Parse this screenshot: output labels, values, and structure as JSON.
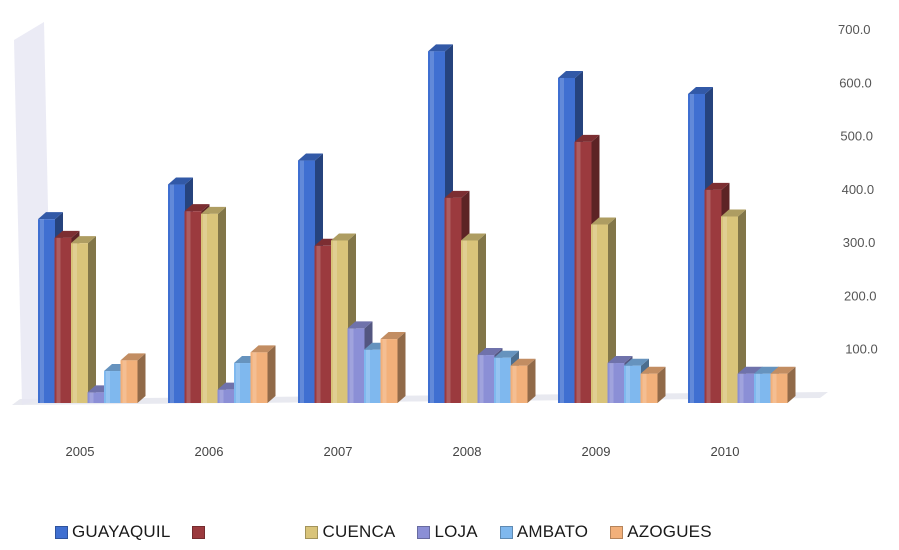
{
  "chart_data": {
    "type": "bar",
    "categories": [
      "2005",
      "2006",
      "2007",
      "2008",
      "2009",
      "2010"
    ],
    "series": [
      {
        "name": "GUAYAQUIL",
        "color": "#3f6fd1",
        "values": [
          345,
          410,
          455,
          660,
          610,
          580
        ]
      },
      {
        "name": "",
        "color": "#9b3a3e",
        "values": [
          310,
          360,
          295,
          385,
          490,
          400
        ]
      },
      {
        "name": "CUENCA",
        "color": "#d9c47a",
        "values": [
          300,
          355,
          305,
          305,
          335,
          350
        ]
      },
      {
        "name": "LOJA",
        "color": "#8b8fd6",
        "values": [
          20,
          25,
          140,
          90,
          75,
          55
        ]
      },
      {
        "name": "AMBATO",
        "color": "#7fb8ee",
        "values": [
          60,
          75,
          100,
          85,
          70,
          55
        ]
      },
      {
        "name": "AZOGUES",
        "color": "#f2b07a",
        "values": [
          80,
          95,
          120,
          70,
          55,
          55
        ]
      }
    ],
    "y_ticks": [
      "100.0",
      "200.0",
      "300.0",
      "400.0",
      "500.0",
      "600.0",
      "700.0"
    ],
    "ylim": [
      0,
      700
    ],
    "legend_position": "bottom",
    "grid": false
  }
}
